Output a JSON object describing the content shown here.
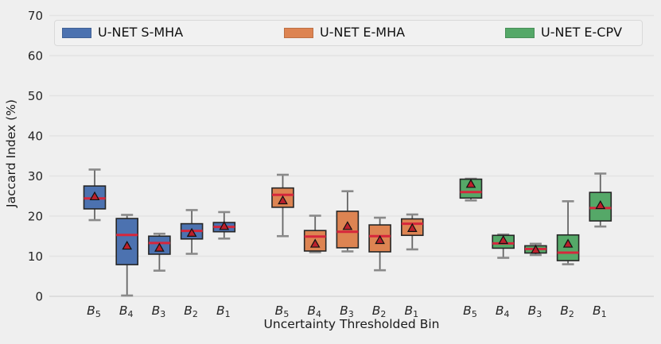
{
  "chart_data": {
    "type": "boxplot",
    "title": "",
    "xlabel": "Uncertainty Thresholded Bin",
    "ylabel": "Jaccard Index (%)",
    "ylim": [
      0,
      70
    ],
    "yticks": [
      0,
      10,
      20,
      30,
      40,
      50,
      60,
      70
    ],
    "grid": true,
    "legend_position": "top-inside",
    "categories": [
      "B5",
      "B4",
      "B3",
      "B2",
      "B1"
    ],
    "category_label_base": "B",
    "category_subscripts": [
      "5",
      "4",
      "3",
      "2",
      "1"
    ],
    "series": [
      {
        "name": "U-NET S-MHA",
        "color": "#4c72b0",
        "boxes": [
          {
            "bin": "B5",
            "whislo": 19.0,
            "q1": 21.8,
            "med": 24.4,
            "q3": 27.5,
            "whishi": 31.6,
            "mean": 24.9
          },
          {
            "bin": "B4",
            "whislo": 0.2,
            "q1": 7.9,
            "med": 15.3,
            "q3": 19.4,
            "whishi": 20.3,
            "mean": 12.6
          },
          {
            "bin": "B3",
            "whislo": 6.4,
            "q1": 10.5,
            "med": 13.3,
            "q3": 15.0,
            "whishi": 15.6,
            "mean": 12.1
          },
          {
            "bin": "B2",
            "whislo": 10.6,
            "q1": 14.3,
            "med": 16.3,
            "q3": 18.1,
            "whishi": 21.5,
            "mean": 15.8
          },
          {
            "bin": "B1",
            "whislo": 14.4,
            "q1": 16.1,
            "med": 17.3,
            "q3": 18.4,
            "whishi": 21.0,
            "mean": 17.5
          }
        ]
      },
      {
        "name": "U-NET E-MHA",
        "color": "#dd8452",
        "boxes": [
          {
            "bin": "B5",
            "whislo": 15.0,
            "q1": 22.2,
            "med": 25.3,
            "q3": 27.0,
            "whishi": 30.3,
            "mean": 23.9
          },
          {
            "bin": "B4",
            "whislo": 11.0,
            "q1": 11.3,
            "med": 14.9,
            "q3": 16.4,
            "whishi": 20.1,
            "mean": 13.1
          },
          {
            "bin": "B3",
            "whislo": 11.2,
            "q1": 12.1,
            "med": 16.1,
            "q3": 21.2,
            "whishi": 26.2,
            "mean": 17.5
          },
          {
            "bin": "B2",
            "whislo": 6.5,
            "q1": 11.1,
            "med": 15.0,
            "q3": 17.8,
            "whishi": 19.6,
            "mean": 14.0
          },
          {
            "bin": "B1",
            "whislo": 11.7,
            "q1": 15.2,
            "med": 18.1,
            "q3": 19.3,
            "whishi": 20.4,
            "mean": 17.0
          }
        ]
      },
      {
        "name": "U-NET E-CPV",
        "color": "#55a868",
        "boxes": [
          {
            "bin": "B5",
            "whislo": 23.9,
            "q1": 24.5,
            "med": 26.0,
            "q3": 29.2,
            "whishi": 29.3,
            "mean": 28.0
          },
          {
            "bin": "B4",
            "whislo": 9.6,
            "q1": 12.0,
            "med": 13.2,
            "q3": 15.2,
            "whishi": 15.4,
            "mean": 14.0
          },
          {
            "bin": "B3",
            "whislo": 10.3,
            "q1": 10.8,
            "med": 11.8,
            "q3": 12.6,
            "whishi": 13.1,
            "mean": 11.6
          },
          {
            "bin": "B2",
            "whislo": 8.0,
            "q1": 8.9,
            "med": 10.9,
            "q3": 15.3,
            "whishi": 23.7,
            "mean": 13.1
          },
          {
            "bin": "B1",
            "whislo": 17.4,
            "q1": 18.8,
            "med": 22.0,
            "q3": 25.9,
            "whishi": 30.6,
            "mean": 22.7
          }
        ]
      }
    ],
    "style": {
      "background": "#efefef",
      "gridline_color": "#e3e3e3",
      "median_color": "#d6273c",
      "mean_marker": "triangle-up",
      "mean_fill": "#bc202c",
      "mean_edge": "#111111",
      "whisker_color": "#666666",
      "cap_color": "#8a8a8a",
      "box_edge_color": "#262626"
    }
  }
}
